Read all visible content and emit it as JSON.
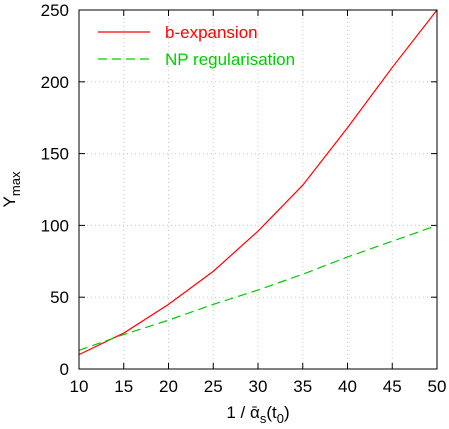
{
  "chart_data": {
    "type": "line",
    "xlim": [
      10,
      50
    ],
    "ylim": [
      0,
      250
    ],
    "x_ticks": [
      "10",
      "15",
      "20",
      "25",
      "30",
      "35",
      "40",
      "45",
      "50"
    ],
    "y_ticks": [
      "0",
      "50",
      "100",
      "150",
      "200",
      "250"
    ],
    "xlabel": "1 / ᾱs(t0)",
    "ylabel": "Ymax",
    "grid": true,
    "legend_position": "top-left",
    "series": [
      {
        "name": "b-expansion",
        "color": "#ff0000",
        "style": "solid",
        "x": [
          10,
          15,
          20,
          25,
          30,
          35,
          40,
          45,
          50
        ],
        "y": [
          10,
          25,
          45,
          68,
          96,
          128,
          168,
          210,
          250
        ]
      },
      {
        "name": "NP regularisation",
        "color": "#00cc00",
        "style": "dashed",
        "x": [
          10,
          15,
          20,
          25,
          30,
          35,
          40,
          45,
          50
        ],
        "y": [
          13,
          24,
          34,
          45,
          55,
          66,
          78,
          89,
          100
        ]
      }
    ]
  }
}
